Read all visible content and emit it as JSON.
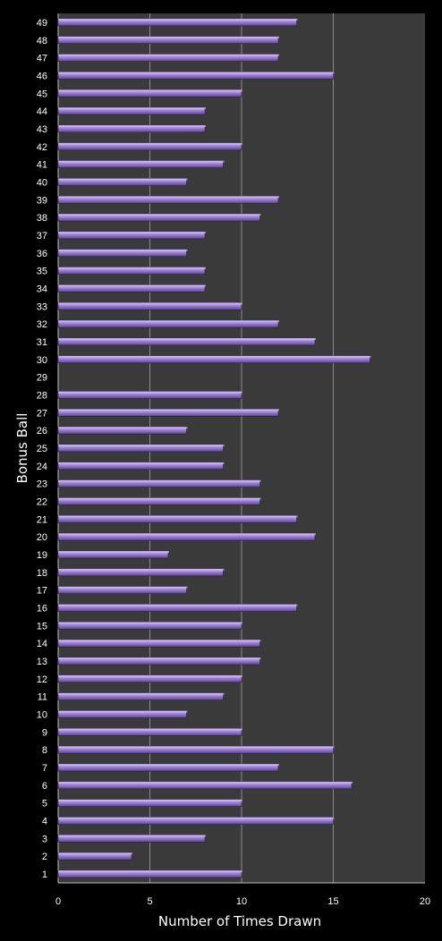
{
  "chart_data": {
    "type": "bar",
    "orientation": "horizontal",
    "xlabel": "Number of Times Drawn",
    "ylabel": "Bonus Ball",
    "xlim": [
      0,
      20
    ],
    "xticks": [
      0,
      5,
      10,
      15,
      20
    ],
    "grid": true,
    "colors": {
      "background": "#000000",
      "plot_area": "#3a3a3a",
      "gridline": "#8c8c8c",
      "bar_fill": "#9b7fd0",
      "bar_highlight": "#c9b6ef",
      "bar_shadow": "#5b4494",
      "text": "#ffffff"
    },
    "categories": [
      "1",
      "2",
      "3",
      "4",
      "5",
      "6",
      "7",
      "8",
      "9",
      "10",
      "11",
      "12",
      "13",
      "14",
      "15",
      "16",
      "17",
      "18",
      "19",
      "20",
      "21",
      "22",
      "23",
      "24",
      "25",
      "26",
      "27",
      "28",
      "29",
      "30",
      "31",
      "32",
      "33",
      "34",
      "35",
      "36",
      "37",
      "38",
      "39",
      "40",
      "41",
      "42",
      "43",
      "44",
      "45",
      "46",
      "47",
      "48",
      "49"
    ],
    "values": [
      10,
      4,
      8,
      15,
      10,
      16,
      12,
      15,
      10,
      7,
      9,
      10,
      11,
      11,
      10,
      13,
      7,
      9,
      6,
      14,
      13,
      11,
      11,
      9,
      9,
      7,
      12,
      10,
      0,
      17,
      14,
      12,
      10,
      8,
      8,
      7,
      8,
      11,
      12,
      7,
      9,
      10,
      8,
      8,
      10,
      15,
      12,
      12,
      13
    ]
  }
}
